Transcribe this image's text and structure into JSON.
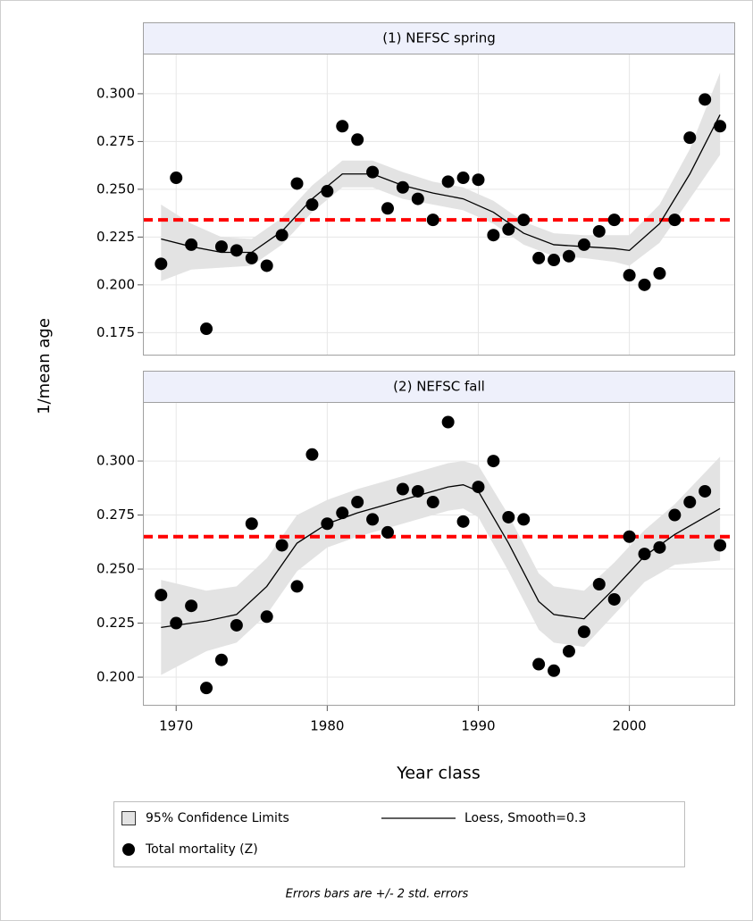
{
  "chart_data": [
    {
      "type": "scatter",
      "title": "(1) NEFSC spring",
      "x": [
        1969,
        1970,
        1971,
        1972,
        1973,
        1974,
        1975,
        1976,
        1977,
        1978,
        1979,
        1980,
        1981,
        1982,
        1983,
        1984,
        1985,
        1986,
        1987,
        1988,
        1989,
        1990,
        1991,
        1992,
        1993,
        1994,
        1995,
        1996,
        1997,
        1998,
        1999,
        2000,
        2001,
        2002,
        2003,
        2004,
        2005,
        2006
      ],
      "series": [
        {
          "name": "95% Confidence Limits",
          "type": "band",
          "color": "#e3e3e3",
          "x": [
            1969,
            1971,
            1973,
            1975,
            1977,
            1979,
            1981,
            1983,
            1985,
            1987,
            1989,
            1991,
            1993,
            1995,
            1997,
            1999,
            2000,
            2002,
            2004,
            2006
          ],
          "lower": [
            0.202,
            0.208,
            0.209,
            0.21,
            0.221,
            0.238,
            0.251,
            0.251,
            0.245,
            0.242,
            0.239,
            0.232,
            0.221,
            0.215,
            0.214,
            0.212,
            0.21,
            0.222,
            0.245,
            0.268
          ],
          "upper": [
            0.242,
            0.232,
            0.225,
            0.224,
            0.235,
            0.252,
            0.265,
            0.265,
            0.259,
            0.254,
            0.251,
            0.244,
            0.233,
            0.227,
            0.226,
            0.226,
            0.226,
            0.242,
            0.271,
            0.311
          ]
        },
        {
          "name": "Loess, Smooth=0.3",
          "type": "line",
          "color": "#000000",
          "x": [
            1969,
            1971,
            1973,
            1975,
            1977,
            1979,
            1981,
            1983,
            1985,
            1987,
            1989,
            1991,
            1993,
            1995,
            1997,
            1999,
            2000,
            2002,
            2004,
            2006
          ],
          "values": [
            0.224,
            0.22,
            0.217,
            0.217,
            0.228,
            0.245,
            0.258,
            0.258,
            0.252,
            0.248,
            0.245,
            0.238,
            0.227,
            0.221,
            0.22,
            0.219,
            0.218,
            0.232,
            0.258,
            0.289
          ]
        },
        {
          "name": "Total mortality (Z)",
          "type": "points",
          "color": "#000000",
          "values": [
            0.211,
            0.256,
            0.221,
            0.177,
            0.22,
            0.218,
            0.214,
            0.21,
            0.226,
            0.253,
            0.242,
            0.249,
            0.283,
            0.276,
            0.259,
            0.24,
            0.251,
            0.245,
            0.234,
            0.254,
            0.256,
            0.255,
            0.226,
            0.229,
            0.234,
            0.214,
            0.213,
            0.215,
            0.221,
            0.228,
            0.234,
            0.205,
            0.2,
            0.206,
            0.234,
            0.277,
            0.297,
            0.283
          ]
        }
      ],
      "refline": 0.234,
      "refline_color": "#ff0000",
      "xlim": [
        1967.8,
        2007.0
      ],
      "xticks": [
        1970,
        1980,
        1990,
        2000
      ],
      "ylim": [
        0.163,
        0.321
      ],
      "yticks": [
        {
          "value": 0.175,
          "label": "0.175"
        },
        {
          "value": 0.2,
          "label": "0.200"
        },
        {
          "value": 0.225,
          "label": "0.225"
        },
        {
          "value": 0.25,
          "label": "0.250"
        },
        {
          "value": 0.275,
          "label": "0.275"
        },
        {
          "value": 0.3,
          "label": "0.300"
        }
      ],
      "grid": true
    },
    {
      "type": "scatter",
      "title": "(2) NEFSC fall",
      "x": [
        1969,
        1970,
        1971,
        1972,
        1973,
        1974,
        1975,
        1976,
        1977,
        1978,
        1979,
        1980,
        1981,
        1982,
        1983,
        1984,
        1985,
        1986,
        1987,
        1988,
        1989,
        1990,
        1991,
        1992,
        1993,
        1994,
        1995,
        1996,
        1997,
        1998,
        1999,
        2000,
        2001,
        2002,
        2003,
        2004,
        2005,
        2006
      ],
      "series": [
        {
          "name": "95% Confidence Limits",
          "type": "band",
          "color": "#e3e3e3",
          "x": [
            1969,
            1972,
            1974,
            1976,
            1978,
            1980,
            1982,
            1984,
            1986,
            1988,
            1989,
            1990,
            1992,
            1994,
            1995,
            1997,
            1999,
            2001,
            2003,
            2006
          ],
          "lower": [
            0.201,
            0.212,
            0.216,
            0.229,
            0.249,
            0.26,
            0.265,
            0.269,
            0.273,
            0.277,
            0.278,
            0.274,
            0.249,
            0.222,
            0.216,
            0.214,
            0.229,
            0.244,
            0.252,
            0.254
          ],
          "upper": [
            0.245,
            0.24,
            0.242,
            0.255,
            0.275,
            0.282,
            0.287,
            0.291,
            0.295,
            0.299,
            0.3,
            0.298,
            0.275,
            0.248,
            0.242,
            0.24,
            0.253,
            0.268,
            0.28,
            0.302
          ]
        },
        {
          "name": "Loess, Smooth=0.3",
          "type": "line",
          "color": "#000000",
          "x": [
            1969,
            1972,
            1974,
            1976,
            1978,
            1980,
            1982,
            1984,
            1986,
            1988,
            1989,
            1990,
            1992,
            1994,
            1995,
            1997,
            1999,
            2001,
            2003,
            2006
          ],
          "values": [
            0.223,
            0.226,
            0.229,
            0.242,
            0.262,
            0.271,
            0.276,
            0.28,
            0.284,
            0.288,
            0.289,
            0.286,
            0.262,
            0.235,
            0.229,
            0.227,
            0.241,
            0.256,
            0.266,
            0.278
          ]
        },
        {
          "name": "Total mortality (Z)",
          "type": "points",
          "color": "#000000",
          "values": [
            0.238,
            0.225,
            0.233,
            0.195,
            0.208,
            0.224,
            0.271,
            0.228,
            0.261,
            0.242,
            0.303,
            0.271,
            0.276,
            0.281,
            0.273,
            0.267,
            0.287,
            0.286,
            0.281,
            0.318,
            0.272,
            0.288,
            0.3,
            0.274,
            0.273,
            0.206,
            0.203,
            0.212,
            0.221,
            0.243,
            0.236,
            0.265,
            0.257,
            0.26,
            0.275,
            0.281,
            0.286,
            0.261
          ]
        }
      ],
      "refline": 0.265,
      "refline_color": "#ff0000",
      "xlim": [
        1967.8,
        2007.0
      ],
      "xticks": [
        1970,
        1980,
        1990,
        2000
      ],
      "ylim": [
        0.1868,
        0.3273
      ],
      "yticks": [
        {
          "value": 0.2,
          "label": "0.200"
        },
        {
          "value": 0.225,
          "label": "0.225"
        },
        {
          "value": 0.25,
          "label": "0.250"
        },
        {
          "value": 0.275,
          "label": "0.275"
        },
        {
          "value": 0.3,
          "label": "0.300"
        }
      ],
      "grid": true
    }
  ],
  "xlabel": "Year class",
  "ylabel": "1/mean age",
  "footnote": "Errors bars are +/- 2 std. errors"
}
